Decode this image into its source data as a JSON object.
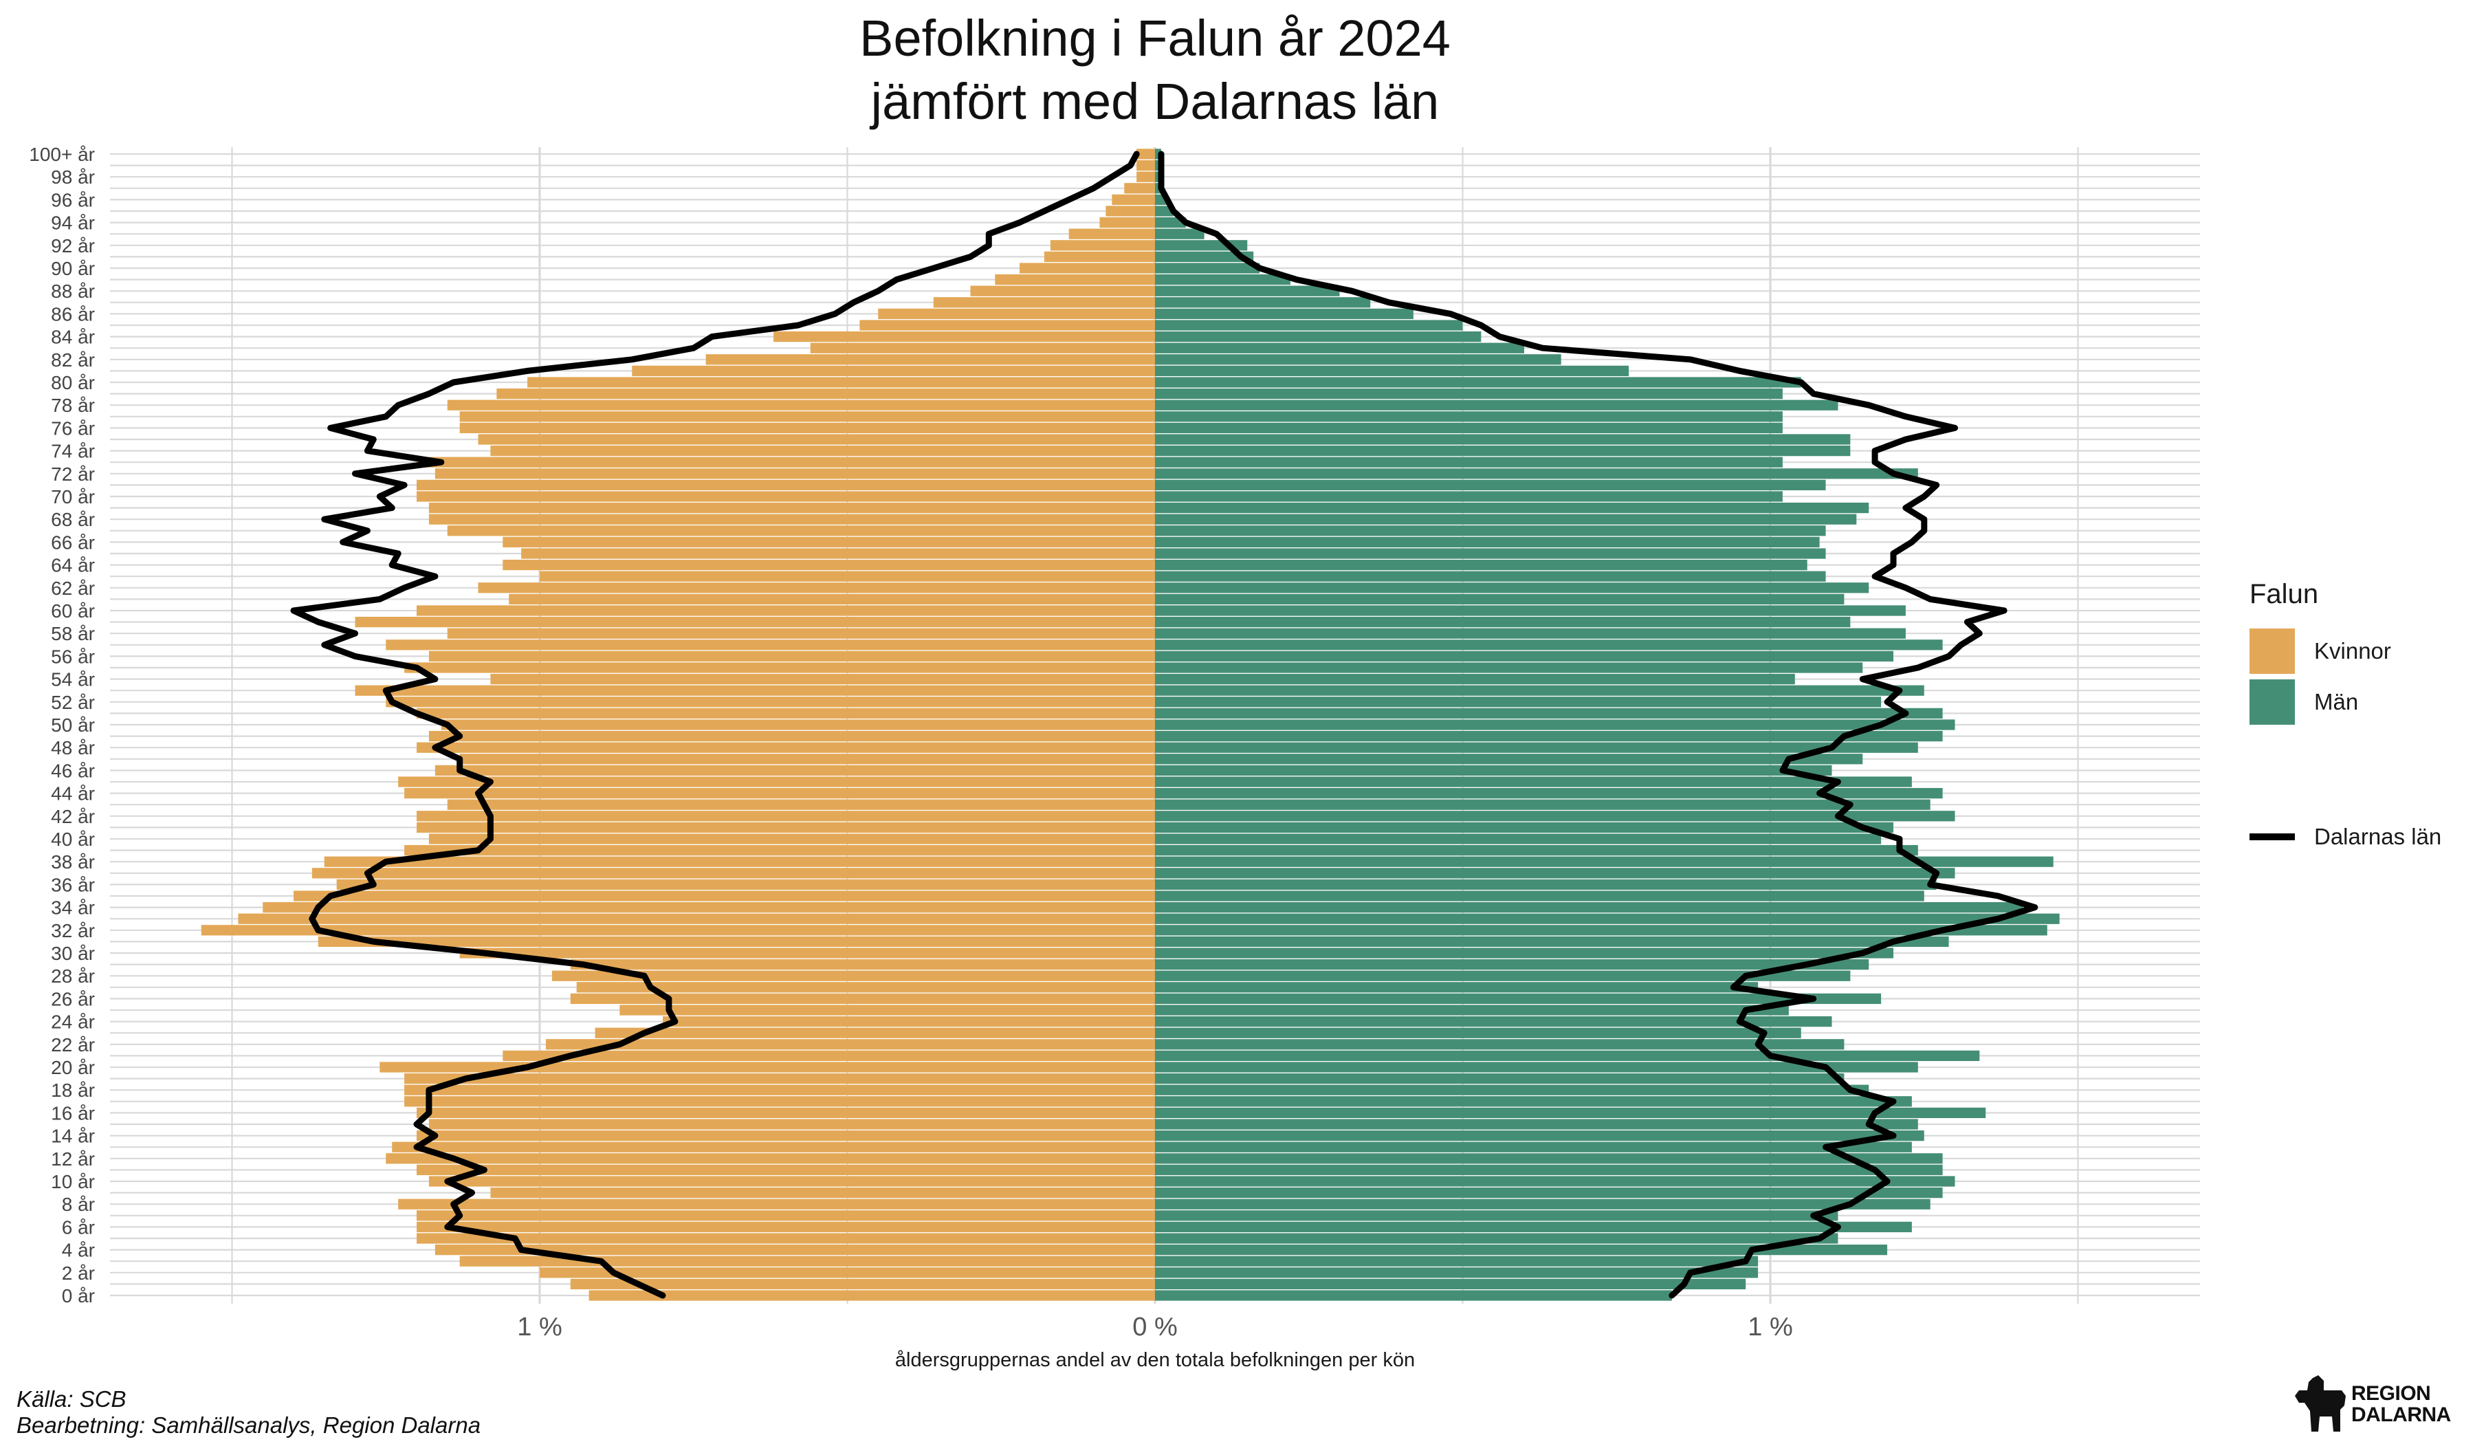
{
  "title_line1": "Befolkning i Falun år 2024",
  "title_line2": "jämfört med Dalarnas län",
  "source_line1": "Källa: SCB",
  "source_line2": "Bearbetning: Samhällsanalys, Region Dalarna",
  "logo_text_line1": "REGION",
  "logo_text_line2": "DALARNA",
  "legend": {
    "title": "Falun",
    "women_label": "Kvinnor",
    "men_label": "Män",
    "line_label": "Dalarnas län"
  },
  "colors": {
    "women": "#E3A857",
    "men": "#458E76",
    "line": "#000000",
    "grid": "#D9D9D9"
  },
  "chart_data": {
    "type": "bar",
    "orientation": "horizontal-pyramid",
    "xlabel": "åldersgruppernas andel av den totala befolkningen per kön",
    "x_tick_labels": [
      "1 %",
      "0 %",
      "1 %"
    ],
    "x_tick_values": [
      -1,
      0,
      1
    ],
    "xlim": [
      -1.7,
      1.7
    ],
    "grid": true,
    "legend_position": "right",
    "age_labels": [
      "0 år",
      "2 år",
      "4 år",
      "6 år",
      "8 år",
      "10 år",
      "12 år",
      "14 år",
      "16 år",
      "18 år",
      "20 år",
      "22 år",
      "24 år",
      "26 år",
      "28 år",
      "30 år",
      "32 år",
      "34 år",
      "36 år",
      "38 år",
      "40 år",
      "42 år",
      "44 år",
      "46 år",
      "48 år",
      "50 år",
      "52 år",
      "54 år",
      "56 år",
      "58 år",
      "60 år",
      "62 år",
      "64 år",
      "66 år",
      "68 år",
      "70 år",
      "72 år",
      "74 år",
      "76 år",
      "78 år",
      "80 år",
      "82 år",
      "84 år",
      "86 år",
      "88 år",
      "90 år",
      "92 år",
      "94 år",
      "96 år",
      "98 år",
      "100+ år"
    ],
    "ages": [
      0,
      1,
      2,
      3,
      4,
      5,
      6,
      7,
      8,
      9,
      10,
      11,
      12,
      13,
      14,
      15,
      16,
      17,
      18,
      19,
      20,
      21,
      22,
      23,
      24,
      25,
      26,
      27,
      28,
      29,
      30,
      31,
      32,
      33,
      34,
      35,
      36,
      37,
      38,
      39,
      40,
      41,
      42,
      43,
      44,
      45,
      46,
      47,
      48,
      49,
      50,
      51,
      52,
      53,
      54,
      55,
      56,
      57,
      58,
      59,
      60,
      61,
      62,
      63,
      64,
      65,
      66,
      67,
      68,
      69,
      70,
      71,
      72,
      73,
      74,
      75,
      76,
      77,
      78,
      79,
      80,
      81,
      82,
      83,
      84,
      85,
      86,
      87,
      88,
      89,
      90,
      91,
      92,
      93,
      94,
      95,
      96,
      97,
      98,
      99,
      100
    ],
    "series": [
      {
        "name": "Kvinnor",
        "values": [
          0.92,
          0.95,
          1.0,
          1.13,
          1.17,
          1.2,
          1.2,
          1.2,
          1.23,
          1.08,
          1.18,
          1.2,
          1.25,
          1.24,
          1.2,
          1.18,
          1.2,
          1.22,
          1.22,
          1.22,
          1.26,
          1.06,
          0.99,
          0.91,
          0.8,
          0.87,
          0.95,
          0.94,
          0.98,
          0.95,
          1.13,
          1.36,
          1.55,
          1.49,
          1.45,
          1.4,
          1.33,
          1.37,
          1.35,
          1.22,
          1.18,
          1.2,
          1.2,
          1.15,
          1.22,
          1.23,
          1.17,
          1.13,
          1.2,
          1.18,
          1.16,
          1.2,
          1.25,
          1.3,
          1.08,
          1.22,
          1.18,
          1.25,
          1.15,
          1.3,
          1.2,
          1.05,
          1.1,
          1.0,
          1.06,
          1.03,
          1.06,
          1.15,
          1.18,
          1.18,
          1.2,
          1.2,
          1.17,
          1.2,
          1.08,
          1.1,
          1.13,
          1.13,
          1.15,
          1.07,
          1.02,
          0.85,
          0.73,
          0.56,
          0.62,
          0.48,
          0.45,
          0.36,
          0.3,
          0.26,
          0.22,
          0.18,
          0.17,
          0.14,
          0.09,
          0.08,
          0.07,
          0.05,
          0.03,
          0.03,
          0.03
        ]
      },
      {
        "name": "Män",
        "values": [
          0.84,
          0.96,
          0.98,
          0.98,
          1.19,
          1.11,
          1.23,
          1.11,
          1.26,
          1.28,
          1.3,
          1.28,
          1.28,
          1.23,
          1.25,
          1.24,
          1.35,
          1.23,
          1.16,
          1.12,
          1.24,
          1.34,
          1.12,
          1.05,
          1.1,
          1.03,
          1.18,
          0.98,
          1.13,
          1.16,
          1.2,
          1.29,
          1.45,
          1.47,
          1.41,
          1.25,
          1.27,
          1.3,
          1.46,
          1.24,
          1.18,
          1.2,
          1.3,
          1.26,
          1.28,
          1.23,
          1.1,
          1.15,
          1.24,
          1.28,
          1.3,
          1.28,
          1.18,
          1.25,
          1.04,
          1.15,
          1.2,
          1.28,
          1.22,
          1.13,
          1.22,
          1.12,
          1.16,
          1.09,
          1.06,
          1.09,
          1.08,
          1.09,
          1.14,
          1.16,
          1.02,
          1.09,
          1.24,
          1.02,
          1.13,
          1.13,
          1.02,
          1.02,
          1.11,
          1.02,
          1.05,
          0.77,
          0.66,
          0.6,
          0.53,
          0.5,
          0.42,
          0.35,
          0.3,
          0.22,
          0.17,
          0.16,
          0.15,
          0.08,
          0.05,
          0.03,
          0.02,
          0.01,
          0.01,
          0.01,
          0.01
        ]
      },
      {
        "name": "Dalarnas län",
        "women": [
          0.8,
          0.84,
          0.88,
          0.9,
          1.03,
          1.04,
          1.15,
          1.13,
          1.14,
          1.11,
          1.15,
          1.09,
          1.14,
          1.2,
          1.17,
          1.2,
          1.18,
          1.18,
          1.18,
          1.12,
          1.02,
          0.95,
          0.87,
          0.83,
          0.78,
          0.79,
          0.79,
          0.82,
          0.83,
          0.93,
          1.09,
          1.27,
          1.36,
          1.37,
          1.36,
          1.34,
          1.27,
          1.28,
          1.25,
          1.1,
          1.08,
          1.08,
          1.08,
          1.09,
          1.1,
          1.08,
          1.13,
          1.13,
          1.17,
          1.13,
          1.15,
          1.2,
          1.24,
          1.25,
          1.17,
          1.2,
          1.3,
          1.35,
          1.3,
          1.36,
          1.4,
          1.26,
          1.22,
          1.17,
          1.24,
          1.23,
          1.32,
          1.28,
          1.35,
          1.24,
          1.26,
          1.22,
          1.3,
          1.16,
          1.28,
          1.27,
          1.34,
          1.25,
          1.23,
          1.18,
          1.14,
          1.02,
          0.85,
          0.75,
          0.72,
          0.58,
          0.52,
          0.49,
          0.45,
          0.42,
          0.36,
          0.3,
          0.27,
          0.27,
          0.22,
          0.18,
          0.14,
          0.1,
          0.07,
          0.04,
          0.03
        ],
        "men": [
          0.84,
          0.86,
          0.87,
          0.96,
          0.97,
          1.08,
          1.11,
          1.07,
          1.13,
          1.16,
          1.19,
          1.17,
          1.13,
          1.09,
          1.2,
          1.16,
          1.17,
          1.2,
          1.13,
          1.11,
          1.09,
          1.0,
          0.98,
          0.99,
          0.95,
          0.96,
          1.07,
          0.94,
          0.96,
          1.06,
          1.15,
          1.2,
          1.28,
          1.37,
          1.43,
          1.37,
          1.26,
          1.27,
          1.24,
          1.21,
          1.21,
          1.15,
          1.11,
          1.13,
          1.08,
          1.11,
          1.02,
          1.03,
          1.1,
          1.12,
          1.18,
          1.22,
          1.19,
          1.21,
          1.15,
          1.24,
          1.29,
          1.31,
          1.34,
          1.32,
          1.38,
          1.26,
          1.22,
          1.17,
          1.2,
          1.2,
          1.23,
          1.25,
          1.25,
          1.22,
          1.25,
          1.27,
          1.2,
          1.17,
          1.17,
          1.22,
          1.3,
          1.22,
          1.16,
          1.07,
          1.05,
          0.95,
          0.87,
          0.63,
          0.56,
          0.53,
          0.48,
          0.38,
          0.32,
          0.23,
          0.17,
          0.14,
          0.12,
          0.1,
          0.05,
          0.03,
          0.02,
          0.01,
          0.01,
          0.01,
          0.01
        ]
      }
    ]
  }
}
